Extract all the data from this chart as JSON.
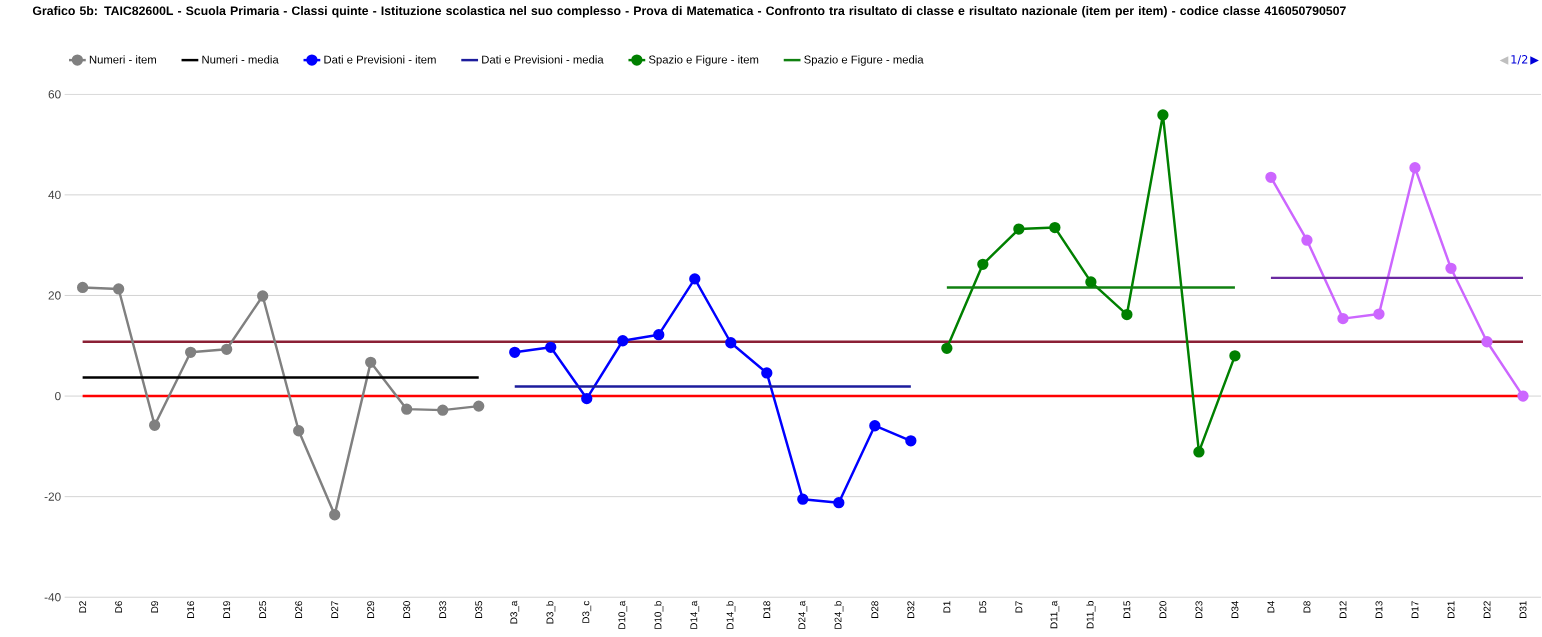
{
  "chart_data": {
    "type": "line",
    "title": "Grafico 5b: TAIC82600L - Scuola Primaria - Classi quinte - Istituzione scolastica nel suo complesso - Prova di Matematica - Confronto tra risultato di classe e risultato nazionale (item per item) - codice classe 416050790507",
    "categories": [
      "D2",
      "D6",
      "D9",
      "D16",
      "D19",
      "D25",
      "D26",
      "D27",
      "D29",
      "D30",
      "D33",
      "D35",
      "D3_a",
      "D3_b",
      "D3_c",
      "D10_a",
      "D10_b",
      "D14_a",
      "D14_b",
      "D18",
      "D24_a",
      "D24_b",
      "D28",
      "D32",
      "D1",
      "D5",
      "D7",
      "D11_a",
      "D11_b",
      "D15",
      "D20",
      "D23",
      "D34",
      "D4",
      "D8",
      "D12",
      "D13",
      "D17",
      "D21",
      "D22",
      "D31"
    ],
    "series": [
      {
        "name": "Numeri - item",
        "color": "#808080",
        "marker": "circle",
        "values": [
          21.6,
          21.3,
          -5.8,
          8.7,
          9.3,
          19.9,
          -6.9,
          -23.6,
          6.7,
          -2.6,
          -2.8,
          -2.0,
          null,
          null,
          null,
          null,
          null,
          null,
          null,
          null,
          null,
          null,
          null,
          null,
          null,
          null,
          null,
          null,
          null,
          null,
          null,
          null,
          null,
          null,
          null,
          null,
          null,
          null,
          null,
          null,
          null
        ]
      },
      {
        "name": "Numeri - media",
        "color": "#000000",
        "marker": "none",
        "values": [
          3.7,
          3.7,
          3.7,
          3.7,
          3.7,
          3.7,
          3.7,
          3.7,
          3.7,
          3.7,
          3.7,
          3.7,
          null,
          null,
          null,
          null,
          null,
          null,
          null,
          null,
          null,
          null,
          null,
          null,
          null,
          null,
          null,
          null,
          null,
          null,
          null,
          null,
          null,
          null,
          null,
          null,
          null,
          null,
          null,
          null,
          null
        ]
      },
      {
        "name": "Dati e Previsioni - item",
        "color": "#0000ff",
        "marker": "circle",
        "values": [
          null,
          null,
          null,
          null,
          null,
          null,
          null,
          null,
          null,
          null,
          null,
          null,
          8.7,
          9.7,
          -0.5,
          11.0,
          12.2,
          23.3,
          10.6,
          4.6,
          -20.5,
          -21.2,
          -5.9,
          -8.9,
          null,
          null,
          null,
          null,
          null,
          null,
          null,
          null,
          null,
          null,
          null,
          null,
          null,
          null,
          null,
          null,
          null
        ]
      },
      {
        "name": "Dati e Previsioni - media",
        "color": "#1c1c9c",
        "marker": "none",
        "values": [
          null,
          null,
          null,
          null,
          null,
          null,
          null,
          null,
          null,
          null,
          null,
          null,
          1.9,
          1.9,
          1.9,
          1.9,
          1.9,
          1.9,
          1.9,
          1.9,
          1.9,
          1.9,
          1.9,
          1.9,
          null,
          null,
          null,
          null,
          null,
          null,
          null,
          null,
          null,
          null,
          null,
          null,
          null,
          null,
          null,
          null,
          null
        ]
      },
      {
        "name": "Spazio e Figure - item",
        "color": "#008000",
        "marker": "circle",
        "values": [
          null,
          null,
          null,
          null,
          null,
          null,
          null,
          null,
          null,
          null,
          null,
          null,
          null,
          null,
          null,
          null,
          null,
          null,
          null,
          null,
          null,
          null,
          null,
          null,
          9.5,
          26.2,
          33.2,
          33.5,
          22.7,
          16.2,
          55.9,
          -11.1,
          8.0,
          null,
          null,
          null,
          null,
          null,
          null,
          null,
          null
        ]
      },
      {
        "name": "Spazio e Figure - media",
        "color": "#108010",
        "marker": "none",
        "values": [
          null,
          null,
          null,
          null,
          null,
          null,
          null,
          null,
          null,
          null,
          null,
          null,
          null,
          null,
          null,
          null,
          null,
          null,
          null,
          null,
          null,
          null,
          null,
          null,
          21.6,
          21.6,
          21.6,
          21.6,
          21.6,
          21.6,
          21.6,
          21.6,
          21.6,
          null,
          null,
          null,
          null,
          null,
          null,
          null,
          null
        ]
      },
      {
        "color": "#cc66ff",
        "marker": "circle",
        "values": [
          null,
          null,
          null,
          null,
          null,
          null,
          null,
          null,
          null,
          null,
          null,
          null,
          null,
          null,
          null,
          null,
          null,
          null,
          null,
          null,
          null,
          null,
          null,
          null,
          null,
          null,
          null,
          null,
          null,
          null,
          null,
          null,
          null,
          43.5,
          31.0,
          15.4,
          16.3,
          45.4,
          25.4,
          10.8,
          0
        ]
      },
      {
        "color": "#6a2aa0",
        "marker": "none",
        "values": [
          null,
          null,
          null,
          null,
          null,
          null,
          null,
          null,
          null,
          null,
          null,
          null,
          null,
          null,
          null,
          null,
          null,
          null,
          null,
          null,
          null,
          null,
          null,
          null,
          null,
          null,
          null,
          null,
          null,
          null,
          null,
          null,
          null,
          23.5,
          23.5,
          23.5,
          23.5,
          23.5,
          23.5,
          23.5,
          23.5
        ]
      }
    ],
    "ref_lines": [
      {
        "axis": "y",
        "value": 0,
        "color": "#ff0000"
      },
      {
        "axis": "y",
        "value": 10.8,
        "color": "#8b2035"
      }
    ],
    "ylim": [
      -40,
      60
    ],
    "yticks": [
      -40,
      -20,
      0,
      20,
      40,
      60
    ],
    "grid": "y",
    "legend": "top",
    "annotations": [
      "◀",
      "1/2",
      "▶"
    ]
  }
}
